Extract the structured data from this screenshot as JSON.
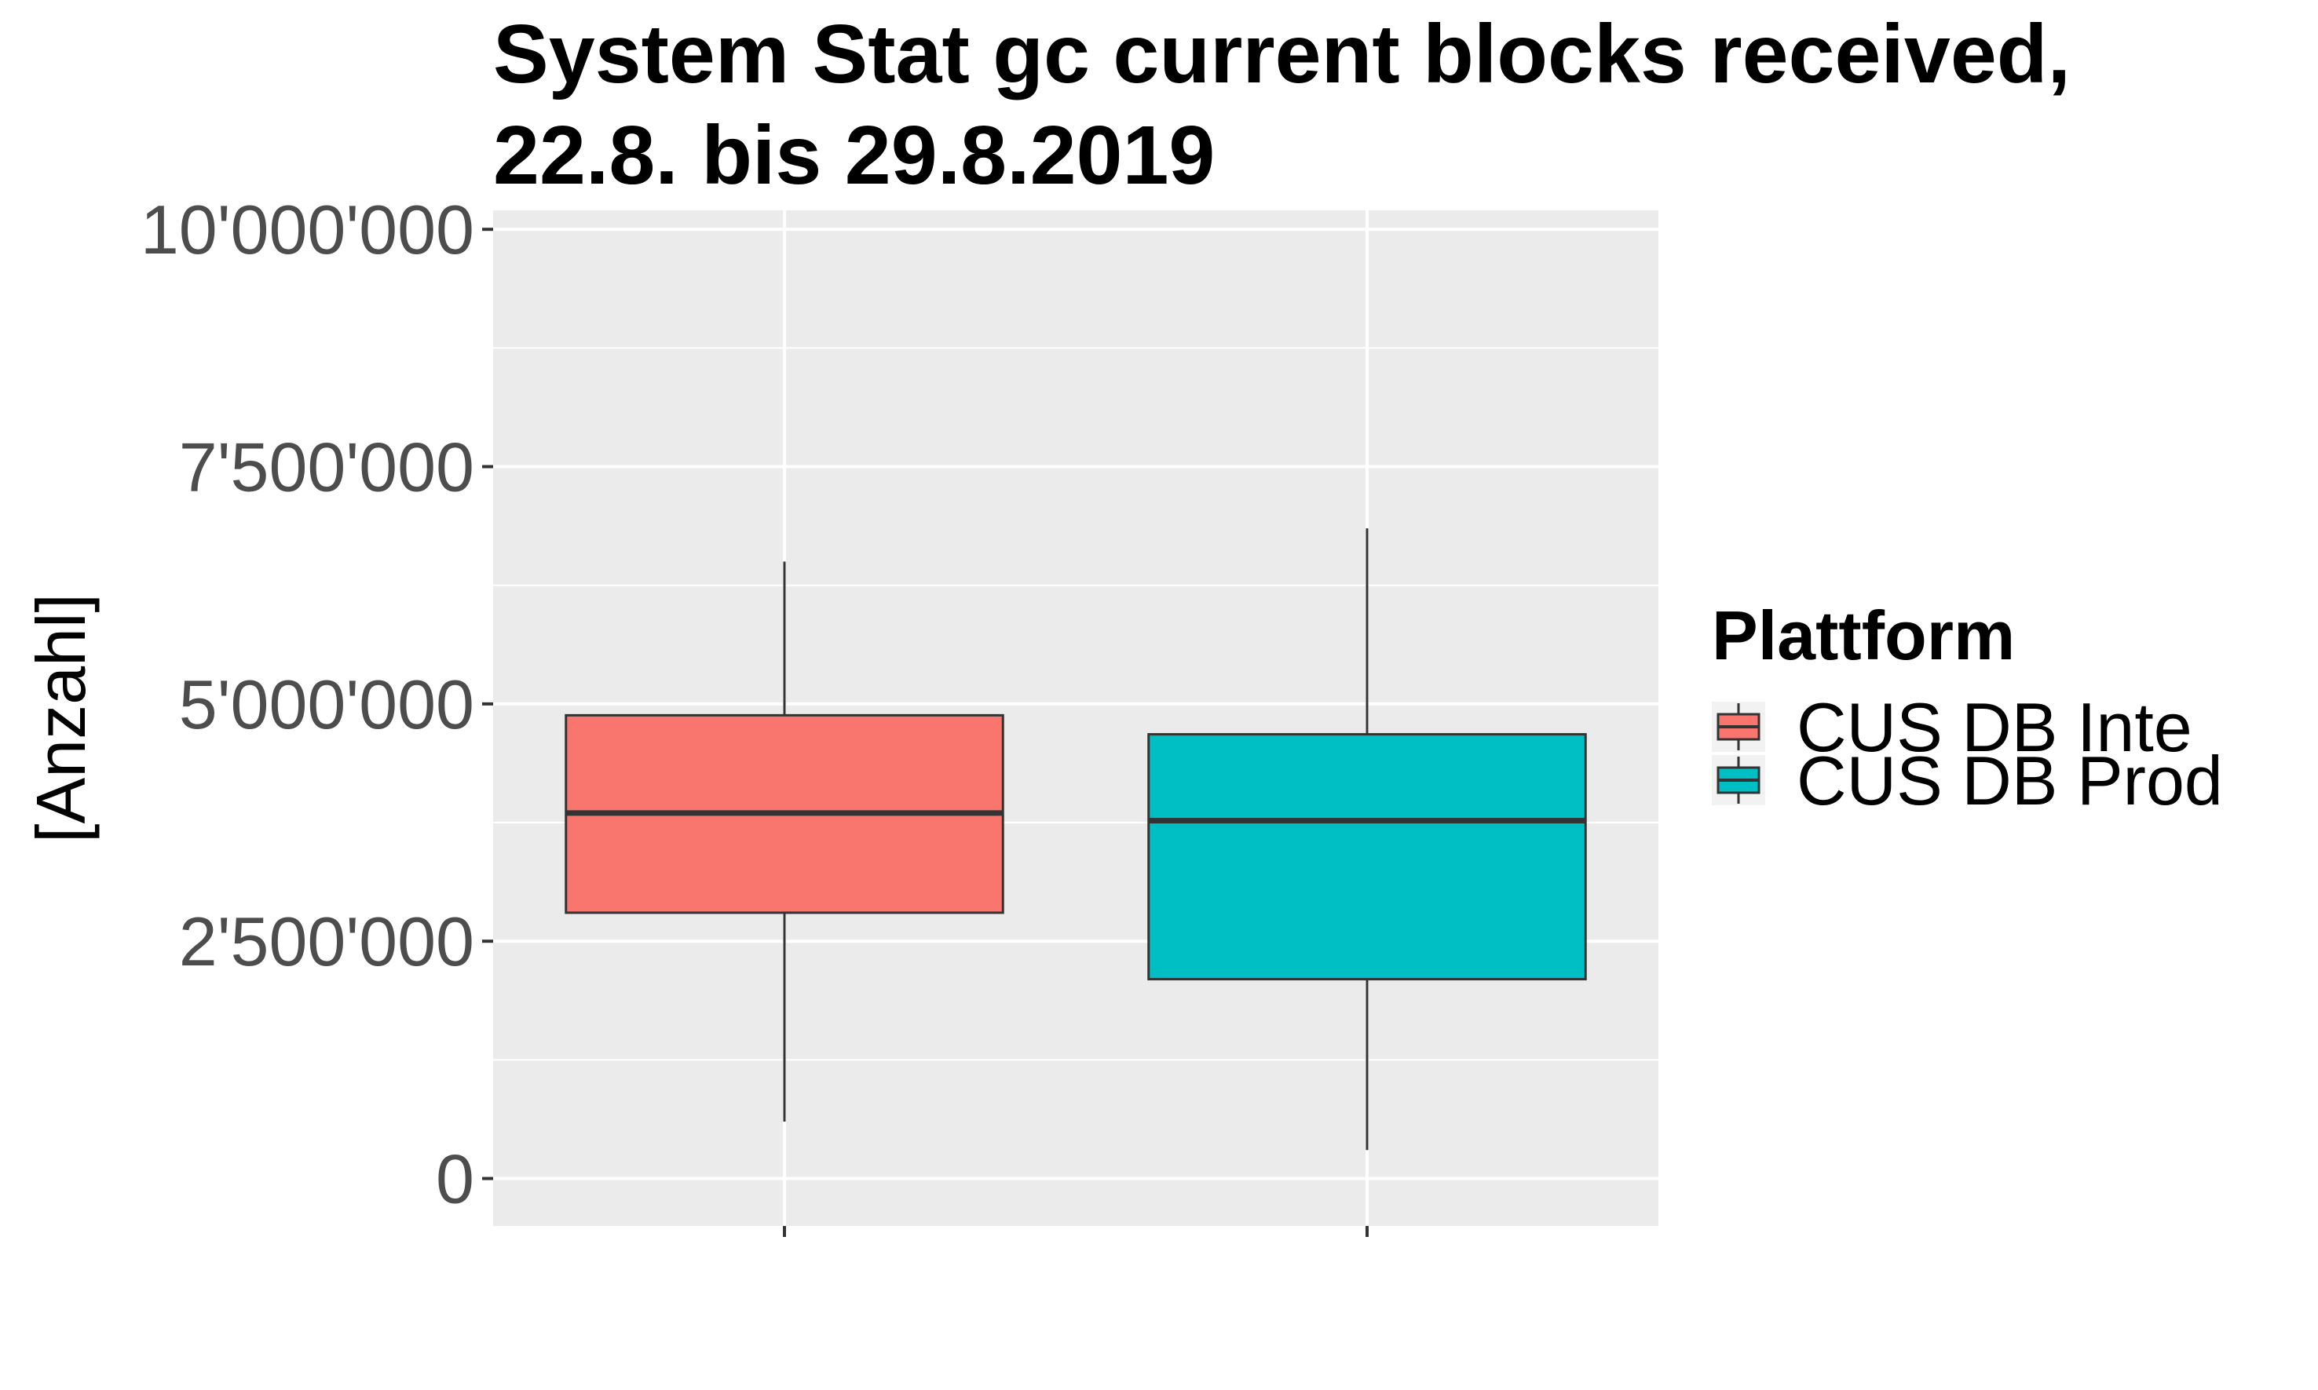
{
  "chart_data": {
    "type": "boxplot",
    "title": [
      "System Stat gc current blocks received,",
      "22.8. bis 29.8.2019"
    ],
    "ylabel": "[Anzahl]",
    "xlabel": "",
    "ylim": [
      -500000,
      10200000
    ],
    "yticks": [
      {
        "value": 0,
        "label": "0"
      },
      {
        "value": 2500000,
        "label": "2'500'000"
      },
      {
        "value": 5000000,
        "label": "5'000'000"
      },
      {
        "value": 7500000,
        "label": "7'500'000"
      },
      {
        "value": 10000000,
        "label": "10'000'000"
      }
    ],
    "grid": true,
    "legend": {
      "title": "Plattform",
      "placement": "right"
    },
    "series": [
      {
        "name": "CUS DB Inte",
        "color": "#F8766D",
        "min": 600000,
        "q1": 2800000,
        "median": 3850000,
        "q3": 4880000,
        "max": 6500000
      },
      {
        "name": "CUS DB Prod",
        "color": "#00BFC4",
        "min": 300000,
        "q1": 2100000,
        "median": 3770000,
        "q3": 4680000,
        "max": 6850000
      }
    ]
  }
}
